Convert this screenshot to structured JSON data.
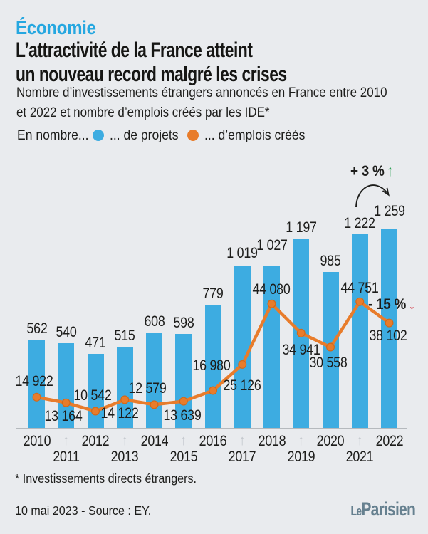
{
  "header": {
    "kicker": "Économie",
    "title_lines": [
      "L’attractivité de la France atteint",
      "un nouveau record malgré les crises"
    ],
    "subtitle_lines": [
      "Nombre d’investissements étrangers annoncés en France entre 2010",
      "et 2022 et nombre d’emplois créés par les IDE*"
    ],
    "legend": {
      "prefix": "En nombre...",
      "items": [
        {
          "label": "... de projets",
          "color": "#3dace1"
        },
        {
          "label": "... d’emplois créés",
          "color": "#e87c2b"
        }
      ]
    }
  },
  "chart_data": {
    "type": "bar+line",
    "title": "L’attractivité de la France atteint un nouveau record malgré les crises",
    "categories": [
      "2010",
      "2011",
      "2012",
      "2013",
      "2014",
      "2015",
      "2016",
      "2017",
      "2018",
      "2019",
      "2020",
      "2021",
      "2022"
    ],
    "series": [
      {
        "name": "... de projets",
        "kind": "bar",
        "color": "#3dace1",
        "values": [
          562,
          540,
          471,
          515,
          608,
          598,
          779,
          1019,
          1027,
          1197,
          985,
          1222,
          1259
        ],
        "labels": [
          "562",
          "540",
          "471",
          "515",
          "608",
          "598",
          "779",
          "1 019",
          "1 027",
          "1 197",
          "985",
          "1 222",
          "1 259"
        ]
      },
      {
        "name": "... d’emplois créés",
        "kind": "line",
        "color": "#e87c2b",
        "values": [
          14922,
          13164,
          10542,
          14122,
          12579,
          13639,
          16980,
          25126,
          44080,
          34941,
          30558,
          44751,
          38102
        ],
        "labels": [
          "14 922",
          "13 164",
          "10 542",
          "14 122",
          "12 579",
          "13 639",
          "16 980",
          "25 126",
          "44 080",
          "34 941",
          "30 558",
          "44 751",
          "38 102"
        ]
      }
    ],
    "annotations": [
      {
        "text": "+ 3 %",
        "arrow": "↑",
        "arrow_color": "#1f9a48"
      },
      {
        "text": "- 15 %",
        "arrow": "↓",
        "arrow_color": "#d0202e"
      }
    ],
    "axis": {
      "value_axis_shown": false,
      "x_label_rows": 2,
      "grid": false,
      "legend_position": "top"
    }
  },
  "footer": {
    "footnote": "* Investissements directs étrangers.",
    "source": "10 mai 2023 - Source : EY.",
    "logo": {
      "le": "Le",
      "parisien": "Parisien"
    }
  }
}
